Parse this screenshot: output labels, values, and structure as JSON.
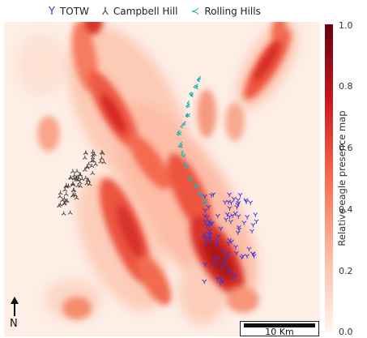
{
  "legend": {
    "items": [
      {
        "symbol": "Y",
        "label": "TOTW",
        "color": "#3b3bd6"
      },
      {
        "symbol": "⅄",
        "label": "Campbell Hill",
        "color": "#444444"
      },
      {
        "symbol": "≺",
        "label": "Rolling Hills",
        "color": "#1fb3b0"
      }
    ]
  },
  "colorbar": {
    "label": "Relative eagle presence map",
    "ticks": [
      "1.0",
      "0.8",
      "0.6",
      "0.4",
      "0.2",
      "0.0"
    ],
    "colormap": [
      "#fff5f0",
      "#fcbba1",
      "#fb6a4a",
      "#cb181d",
      "#67000d"
    ]
  },
  "north_label": "N",
  "scalebar_label": "10 Km",
  "colors": {
    "map_background": "#fdeee6",
    "totw": "#3b3bd6",
    "campbell": "#444444",
    "rolling": "#1fb3b0"
  }
}
